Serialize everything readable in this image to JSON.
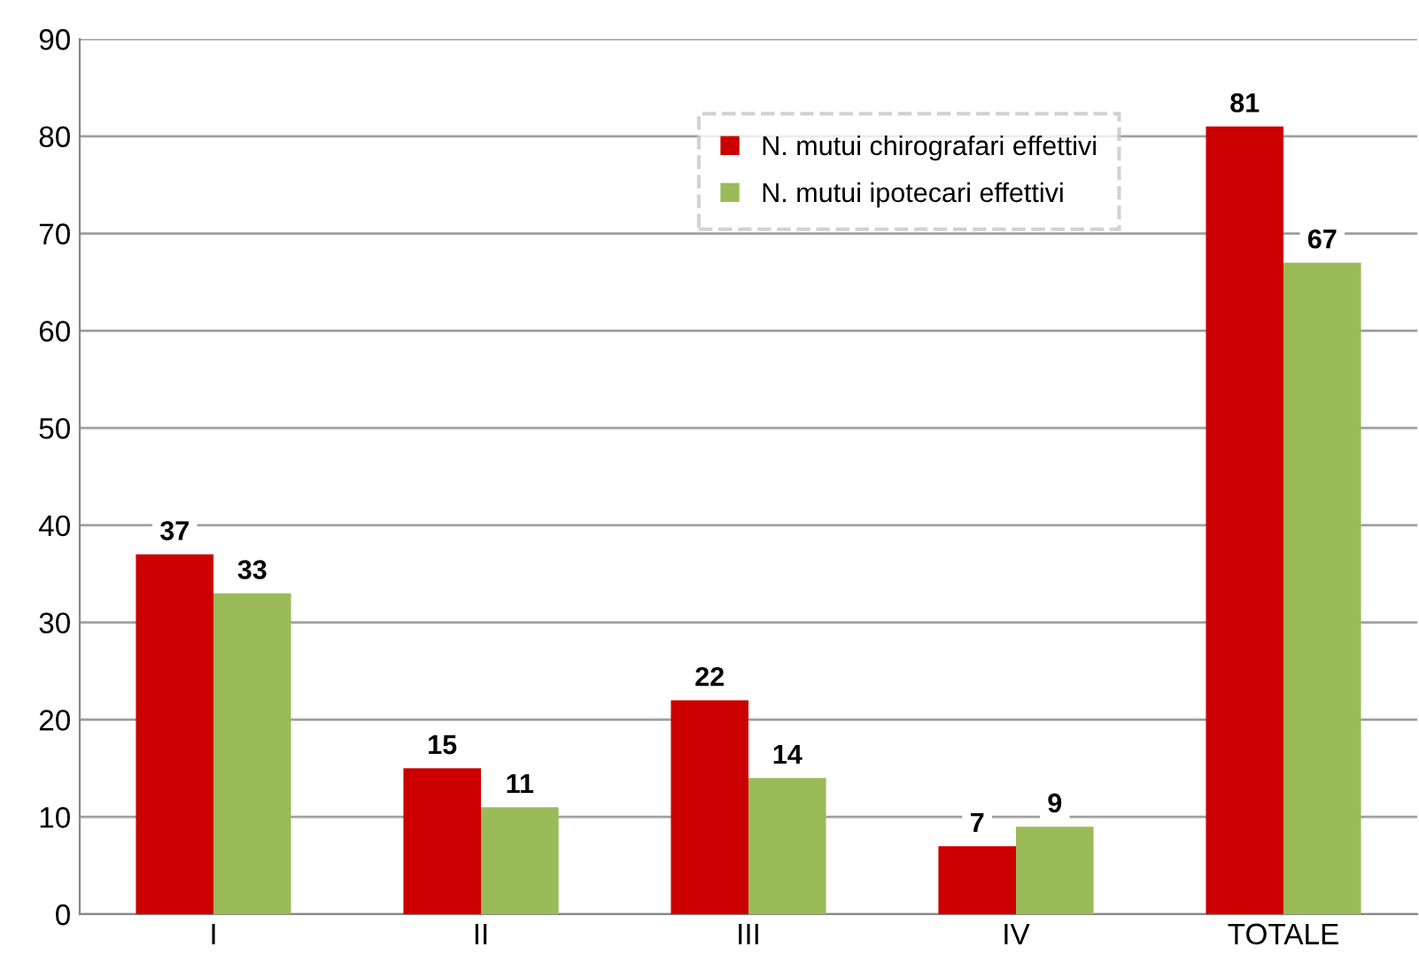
{
  "chart_data": {
    "type": "bar",
    "categories": [
      "I",
      "II",
      "III",
      "IV",
      "TOTALE"
    ],
    "series": [
      {
        "name": "N. mutui chirografari effettivi",
        "color": "#cc0000",
        "values": [
          37,
          15,
          22,
          7,
          81
        ]
      },
      {
        "name": "N. mutui ipotecari effettivi",
        "color": "#9bbb59",
        "values": [
          33,
          11,
          14,
          9,
          67
        ]
      }
    ],
    "ylim": [
      0,
      90
    ],
    "yticks": [
      0,
      10,
      20,
      30,
      40,
      50,
      60,
      70,
      80,
      90
    ],
    "grid": "y",
    "legend": "top",
    "data_labels": true
  }
}
